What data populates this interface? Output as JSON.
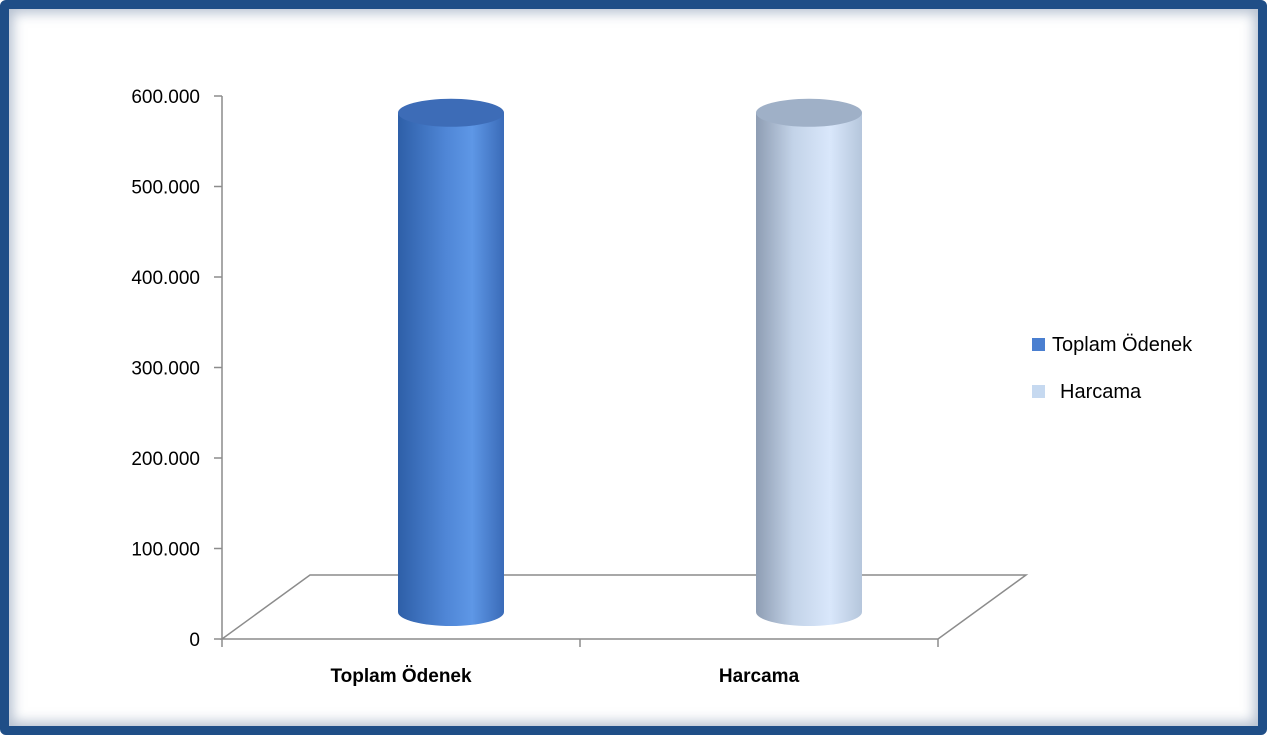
{
  "chart_data": {
    "type": "bar",
    "style": "3d-cylinder",
    "categories": [
      "Toplam Ödenek",
      "Harcama"
    ],
    "values": [
      545000,
      545000
    ],
    "ylim": [
      0,
      600000
    ],
    "yticks": [
      0,
      100000,
      200000,
      300000,
      400000,
      500000,
      600000
    ],
    "ytick_labels": [
      "0",
      "100.000",
      "200.000",
      "300.000",
      "400.000",
      "500.000",
      "600.000"
    ],
    "legend": {
      "position": "right",
      "entries": [
        {
          "label": "Toplam Ödenek",
          "color": "#4a7fd0"
        },
        {
          "label": "Harcama",
          "color": "#c6d9f0"
        }
      ]
    },
    "grid": false,
    "colors": {
      "frame_border": "#1f4e87",
      "cylinder_1": "#4a7fd0",
      "cylinder_2": "#c6d9f0"
    }
  }
}
